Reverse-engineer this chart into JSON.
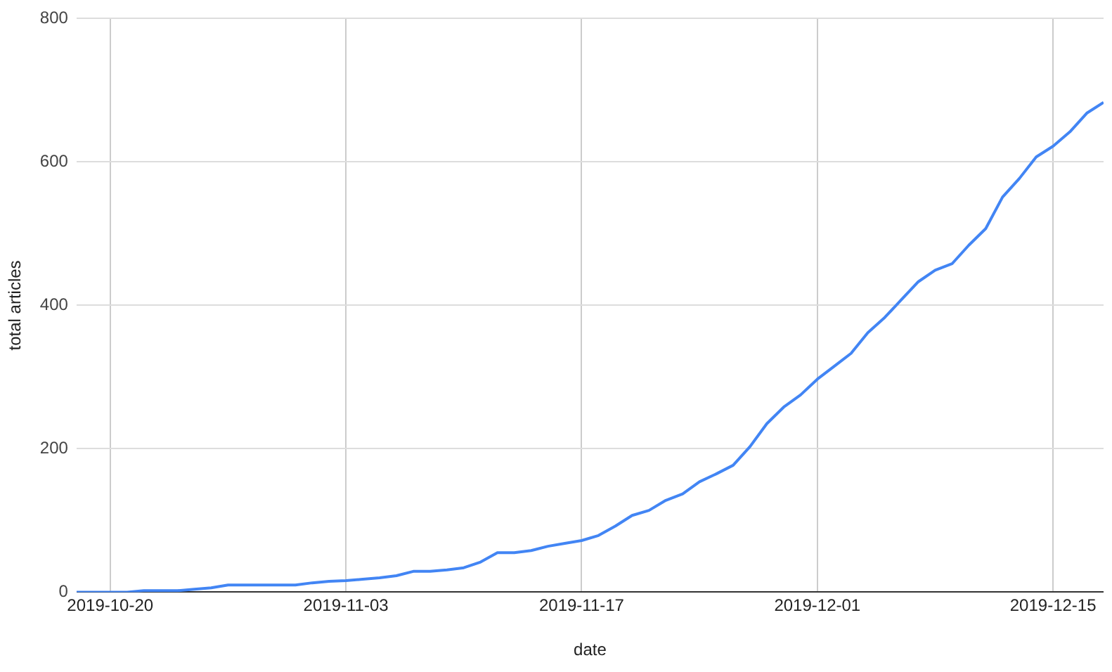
{
  "chart_data": {
    "type": "line",
    "xlabel": "date",
    "ylabel": "total articles",
    "x": [
      "2019-10-18",
      "2019-10-19",
      "2019-10-20",
      "2019-10-21",
      "2019-10-22",
      "2019-10-23",
      "2019-10-24",
      "2019-10-25",
      "2019-10-26",
      "2019-10-27",
      "2019-10-28",
      "2019-10-29",
      "2019-10-30",
      "2019-10-31",
      "2019-11-01",
      "2019-11-02",
      "2019-11-03",
      "2019-11-04",
      "2019-11-05",
      "2019-11-06",
      "2019-11-07",
      "2019-11-08",
      "2019-11-09",
      "2019-11-10",
      "2019-11-11",
      "2019-11-12",
      "2019-11-13",
      "2019-11-14",
      "2019-11-15",
      "2019-11-16",
      "2019-11-17",
      "2019-11-18",
      "2019-11-19",
      "2019-11-20",
      "2019-11-21",
      "2019-11-22",
      "2019-11-23",
      "2019-11-24",
      "2019-11-25",
      "2019-11-26",
      "2019-11-27",
      "2019-11-28",
      "2019-11-29",
      "2019-11-30",
      "2019-12-01",
      "2019-12-02",
      "2019-12-03",
      "2019-12-04",
      "2019-12-05",
      "2019-12-06",
      "2019-12-07",
      "2019-12-08",
      "2019-12-09",
      "2019-12-10",
      "2019-12-11",
      "2019-12-12",
      "2019-12-13",
      "2019-12-14",
      "2019-12-15",
      "2019-12-16",
      "2019-12-17",
      "2019-12-18"
    ],
    "series": [
      {
        "color": "#4285f4",
        "values": [
          0,
          0,
          0,
          0,
          2,
          2,
          2,
          4,
          6,
          10,
          10,
          10,
          10,
          10,
          13,
          15,
          16,
          18,
          20,
          23,
          29,
          29,
          31,
          34,
          42,
          55,
          55,
          58,
          64,
          68,
          72,
          79,
          92,
          107,
          114,
          128,
          137,
          154,
          165,
          177,
          203,
          235,
          258,
          275,
          297,
          315,
          333,
          362,
          383,
          408,
          433,
          449,
          458,
          484,
          507,
          551,
          577,
          607,
          622,
          642,
          668,
          683
        ]
      }
    ],
    "xlim": [
      "2019-10-18",
      "2019-12-18"
    ],
    "xticks": [
      "2019-10-20",
      "2019-11-03",
      "2019-11-17",
      "2019-12-01",
      "2019-12-15"
    ],
    "ylim": [
      0,
      800
    ],
    "yticks": [
      0,
      200,
      400,
      600,
      800
    ],
    "grid": true,
    "legend": false,
    "marker": "none",
    "line_style": "solid"
  }
}
